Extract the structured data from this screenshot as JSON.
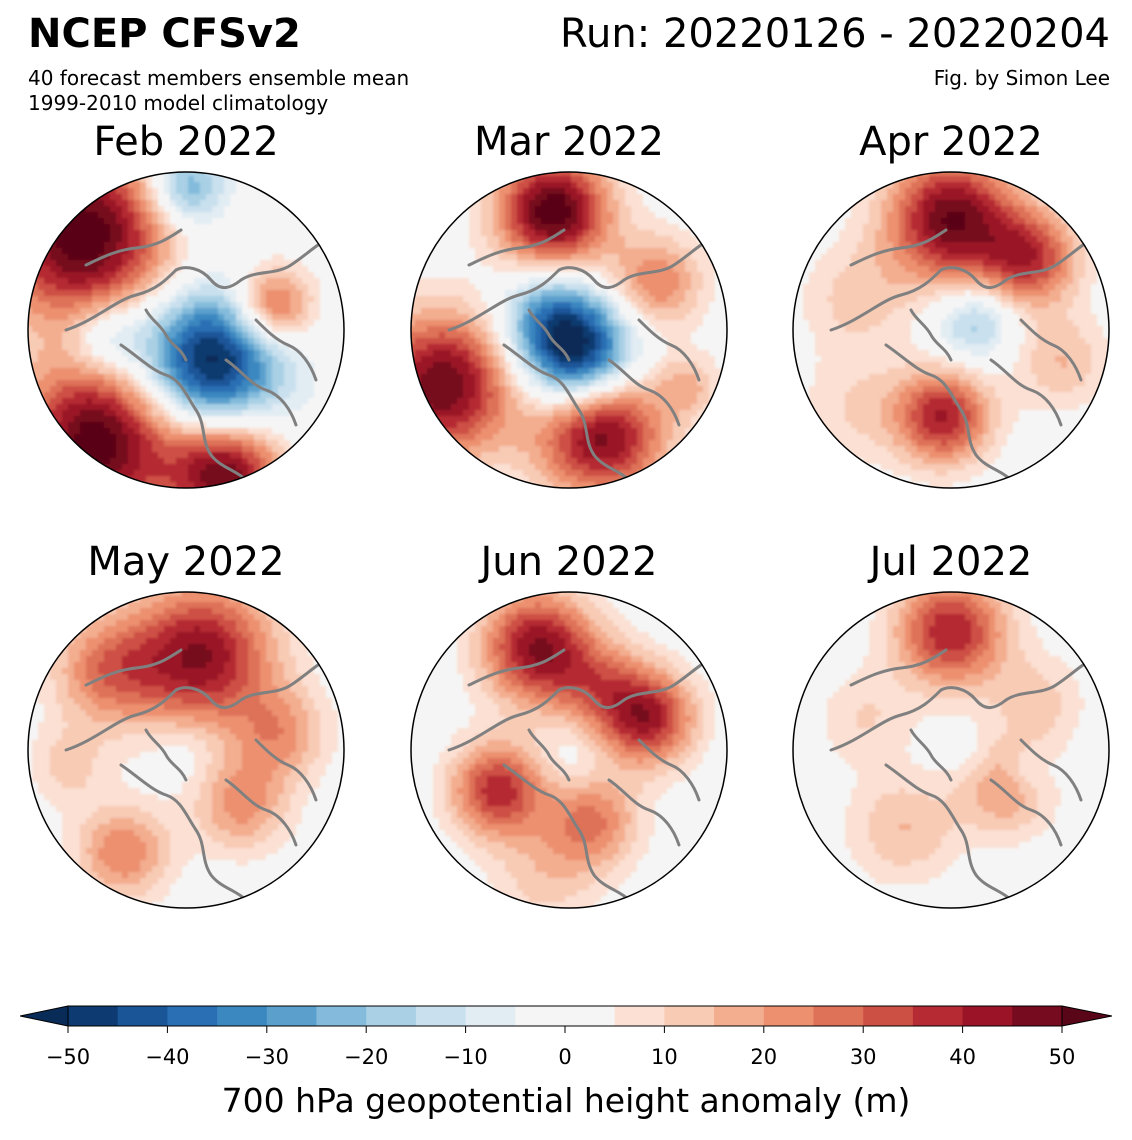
{
  "header": {
    "title": "NCEP CFSv2",
    "run": "Run: 20220126 - 20220204",
    "subtitle_1": "40 forecast members ensemble mean",
    "subtitle_2": "1999-2010 model climatology",
    "credit": "Fig. by Simon Lee"
  },
  "panels": [
    {
      "title": "Feb 2022",
      "blobs": [
        {
          "u": -0.65,
          "v": -0.6,
          "r": 0.55,
          "val": 55
        },
        {
          "u": 0.0,
          "v": -0.9,
          "r": 0.25,
          "val": -30
        },
        {
          "u": 0.55,
          "v": -0.15,
          "r": 0.25,
          "val": 35
        },
        {
          "u": 0.15,
          "v": 0.2,
          "r": 0.45,
          "val": -55
        },
        {
          "u": -0.5,
          "v": 0.05,
          "r": 0.25,
          "val": -20
        },
        {
          "u": -0.55,
          "v": 0.7,
          "r": 0.5,
          "val": 55
        },
        {
          "u": 0.25,
          "v": 0.9,
          "r": 0.35,
          "val": 50
        }
      ]
    },
    {
      "title": "Mar 2022",
      "blobs": [
        {
          "u": -0.1,
          "v": -0.75,
          "r": 0.35,
          "val": 55
        },
        {
          "u": -0.8,
          "v": 0.35,
          "r": 0.45,
          "val": 50
        },
        {
          "u": 0.05,
          "v": 0.15,
          "r": 0.35,
          "val": -55
        },
        {
          "u": -0.15,
          "v": -0.1,
          "r": 0.3,
          "val": -20
        },
        {
          "u": 0.2,
          "v": 0.65,
          "r": 0.4,
          "val": 50
        },
        {
          "u": 0.55,
          "v": -0.3,
          "r": 0.3,
          "val": 25
        },
        {
          "u": 0.75,
          "v": 0.35,
          "r": 0.2,
          "val": 15
        }
      ]
    },
    {
      "title": "Apr 2022",
      "blobs": [
        {
          "u": 0.0,
          "v": -0.7,
          "r": 0.4,
          "val": 50
        },
        {
          "u": 0.5,
          "v": -0.45,
          "r": 0.3,
          "val": 35
        },
        {
          "u": -0.05,
          "v": 0.55,
          "r": 0.3,
          "val": 40
        },
        {
          "u": 0.15,
          "v": -0.05,
          "r": 0.25,
          "val": -20
        },
        {
          "u": -0.6,
          "v": -0.2,
          "r": 0.35,
          "val": 12
        },
        {
          "u": 0.7,
          "v": 0.2,
          "r": 0.3,
          "val": 15
        },
        {
          "u": -0.6,
          "v": 0.5,
          "r": 0.35,
          "val": 10
        }
      ]
    },
    {
      "title": "May 2022",
      "blobs": [
        {
          "u": 0.1,
          "v": -0.6,
          "r": 0.45,
          "val": 45
        },
        {
          "u": -0.5,
          "v": -0.5,
          "r": 0.35,
          "val": 25
        },
        {
          "u": 0.6,
          "v": -0.1,
          "r": 0.3,
          "val": 20
        },
        {
          "u": -0.4,
          "v": 0.65,
          "r": 0.3,
          "val": 25
        },
        {
          "u": 0.35,
          "v": 0.35,
          "r": 0.3,
          "val": 22
        },
        {
          "u": -0.75,
          "v": 0.1,
          "r": 0.25,
          "val": 12
        },
        {
          "u": 0.0,
          "v": 0.0,
          "r": 0.2,
          "val": -5
        }
      ]
    },
    {
      "title": "Jun 2022",
      "blobs": [
        {
          "u": -0.2,
          "v": -0.65,
          "r": 0.35,
          "val": 45
        },
        {
          "u": 0.5,
          "v": -0.2,
          "r": 0.3,
          "val": 40
        },
        {
          "u": -0.45,
          "v": 0.25,
          "r": 0.3,
          "val": 38
        },
        {
          "u": 0.15,
          "v": 0.45,
          "r": 0.3,
          "val": 25
        },
        {
          "u": 0.2,
          "v": -0.4,
          "r": 0.3,
          "val": 20
        },
        {
          "u": -0.15,
          "v": 0.8,
          "r": 0.35,
          "val": 12
        },
        {
          "u": 0.0,
          "v": 0.05,
          "r": 0.2,
          "val": -5
        }
      ]
    },
    {
      "title": "Jul 2022",
      "blobs": [
        {
          "u": 0.0,
          "v": -0.75,
          "r": 0.35,
          "val": 40
        },
        {
          "u": 0.35,
          "v": 0.25,
          "r": 0.3,
          "val": 20
        },
        {
          "u": -0.3,
          "v": 0.5,
          "r": 0.35,
          "val": 15
        },
        {
          "u": 0.55,
          "v": -0.3,
          "r": 0.3,
          "val": 12
        },
        {
          "u": -0.55,
          "v": -0.2,
          "r": 0.3,
          "val": 10
        },
        {
          "u": 0.5,
          "v": 0.15,
          "r": 0.15,
          "val": -8
        },
        {
          "u": 0.05,
          "v": 0.0,
          "r": 0.15,
          "val": -5
        }
      ]
    }
  ],
  "colorbar": {
    "label": "700 hPa geopotential height anomaly (m)",
    "min": -50,
    "max": 50,
    "step": 5,
    "ticks": [
      "−50",
      "−40",
      "−30",
      "−20",
      "−10",
      "0",
      "10",
      "20",
      "30",
      "40",
      "50"
    ],
    "colors": [
      "#0d3a70",
      "#1a5598",
      "#2a6eb3",
      "#3b87c0",
      "#5ba0cd",
      "#84bbdc",
      "#a9d0e5",
      "#c9e0ee",
      "#e1ecf3",
      "#f5f5f5",
      "#f5f5f5",
      "#fbe0d3",
      "#f8cbb5",
      "#f3ad8f",
      "#ec906f",
      "#de7259",
      "#cd5045",
      "#b52a33",
      "#9a1327",
      "#760a1f"
    ],
    "extend_low": "#082b57",
    "extend_high": "#5a0619"
  },
  "coast_color": "#808080"
}
